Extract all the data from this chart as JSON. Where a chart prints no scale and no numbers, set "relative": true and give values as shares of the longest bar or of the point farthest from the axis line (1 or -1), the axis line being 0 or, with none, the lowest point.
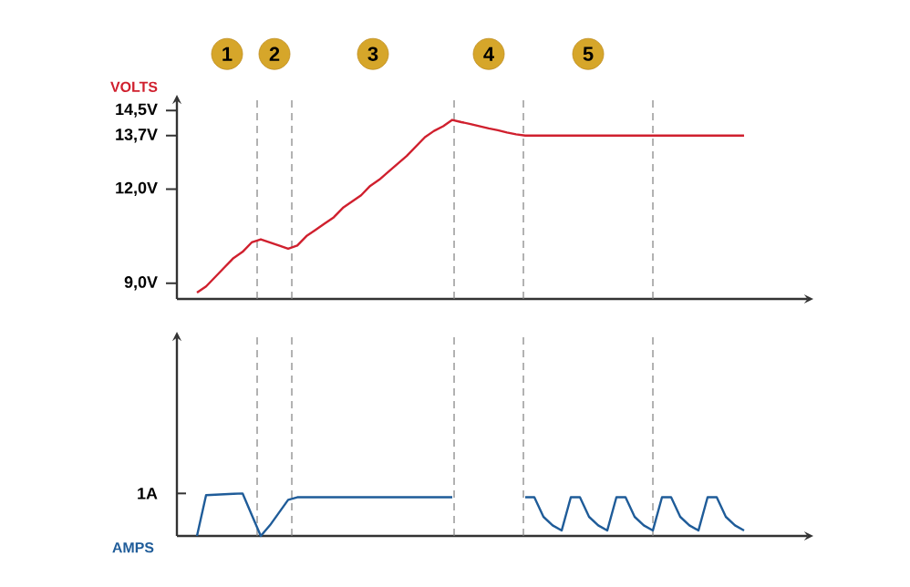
{
  "chart_data": [
    {
      "type": "line",
      "ylabel": "VOLTS",
      "color": "#d0202e",
      "categories": [
        null,
        null,
        null,
        null,
        null,
        null,
        null,
        null,
        null,
        null,
        null,
        null,
        null,
        null,
        null,
        null,
        null,
        null,
        null,
        null,
        null,
        null,
        null,
        null,
        null,
        null,
        null,
        null,
        null,
        null,
        null,
        null,
        null,
        null,
        null,
        null,
        null,
        null,
        null,
        null,
        null,
        null,
        null,
        null,
        null,
        null,
        null,
        null,
        null,
        null,
        null,
        null,
        null,
        null,
        null,
        null,
        null,
        null,
        null,
        null,
        null
      ],
      "values": [
        8.7,
        8.9,
        9.2,
        9.5,
        9.8,
        10.0,
        10.3,
        10.4,
        10.3,
        10.2,
        10.1,
        10.2,
        10.5,
        10.7,
        10.9,
        11.1,
        11.4,
        11.6,
        11.8,
        12.1,
        12.3,
        12.55,
        12.8,
        13.05,
        13.35,
        13.65,
        13.85,
        14.0,
        14.2,
        14.13,
        14.07,
        14.0,
        13.93,
        13.87,
        13.8,
        13.74,
        13.7,
        13.7,
        13.7,
        13.7,
        13.7,
        13.7,
        13.7,
        13.7,
        13.7,
        13.7,
        13.7,
        13.7,
        13.7,
        13.7,
        13.7,
        13.7,
        13.7,
        13.7,
        13.7,
        13.7,
        13.7,
        13.7,
        13.7,
        13.7,
        13.7
      ],
      "ylim": [
        8.5,
        15
      ],
      "yticks": [
        {
          "value": 9,
          "label": "9,0V"
        },
        {
          "value": 12,
          "label": "12,0V"
        },
        {
          "value": 13.7,
          "label": "13,7V"
        },
        {
          "value": 14.5,
          "label": "14,5V"
        }
      ],
      "tick_labels": "y",
      "annotations": [
        "1",
        "2",
        "3",
        "4",
        "5"
      ]
    },
    {
      "type": "line",
      "ylabel": "AMPS",
      "color": "#1f5c99",
      "relative": true,
      "categories": [
        null,
        null,
        null,
        null,
        null,
        null,
        null,
        null,
        null,
        null,
        null,
        null,
        null,
        null,
        null,
        null,
        null,
        null,
        null,
        null,
        null,
        null,
        null,
        null,
        null,
        null,
        null,
        null,
        null,
        null,
        null,
        null,
        null,
        null,
        null,
        null,
        null,
        null,
        null,
        null,
        null,
        null,
        null,
        null,
        null,
        null,
        null,
        null,
        null,
        null,
        null,
        null,
        null,
        null,
        null,
        null,
        null,
        null,
        null,
        null,
        null
      ],
      "values": [
        0,
        0.96,
        0.97,
        0.98,
        0.99,
        1.0,
        0.5,
        0,
        0.25,
        0.55,
        0.85,
        0.91,
        0.91,
        0.91,
        0.91,
        0.91,
        0.91,
        0.91,
        0.91,
        0.91,
        0.91,
        0.91,
        0.91,
        0.91,
        0.91,
        0.91,
        0.91,
        0.91,
        0.91,
        null,
        null,
        null,
        null,
        null,
        null,
        null,
        0.91,
        0.91,
        0.45,
        0.25,
        0.13,
        0.91,
        0.91,
        0.45,
        0.25,
        0.13,
        0.91,
        0.91,
        0.45,
        0.25,
        0.13,
        0.91,
        0.91,
        0.45,
        0.25,
        0.13,
        0.91,
        0.91,
        0.45,
        0.25,
        0.13
      ],
      "tick_labels": false,
      "annotations": [
        "1A"
      ]
    }
  ]
}
